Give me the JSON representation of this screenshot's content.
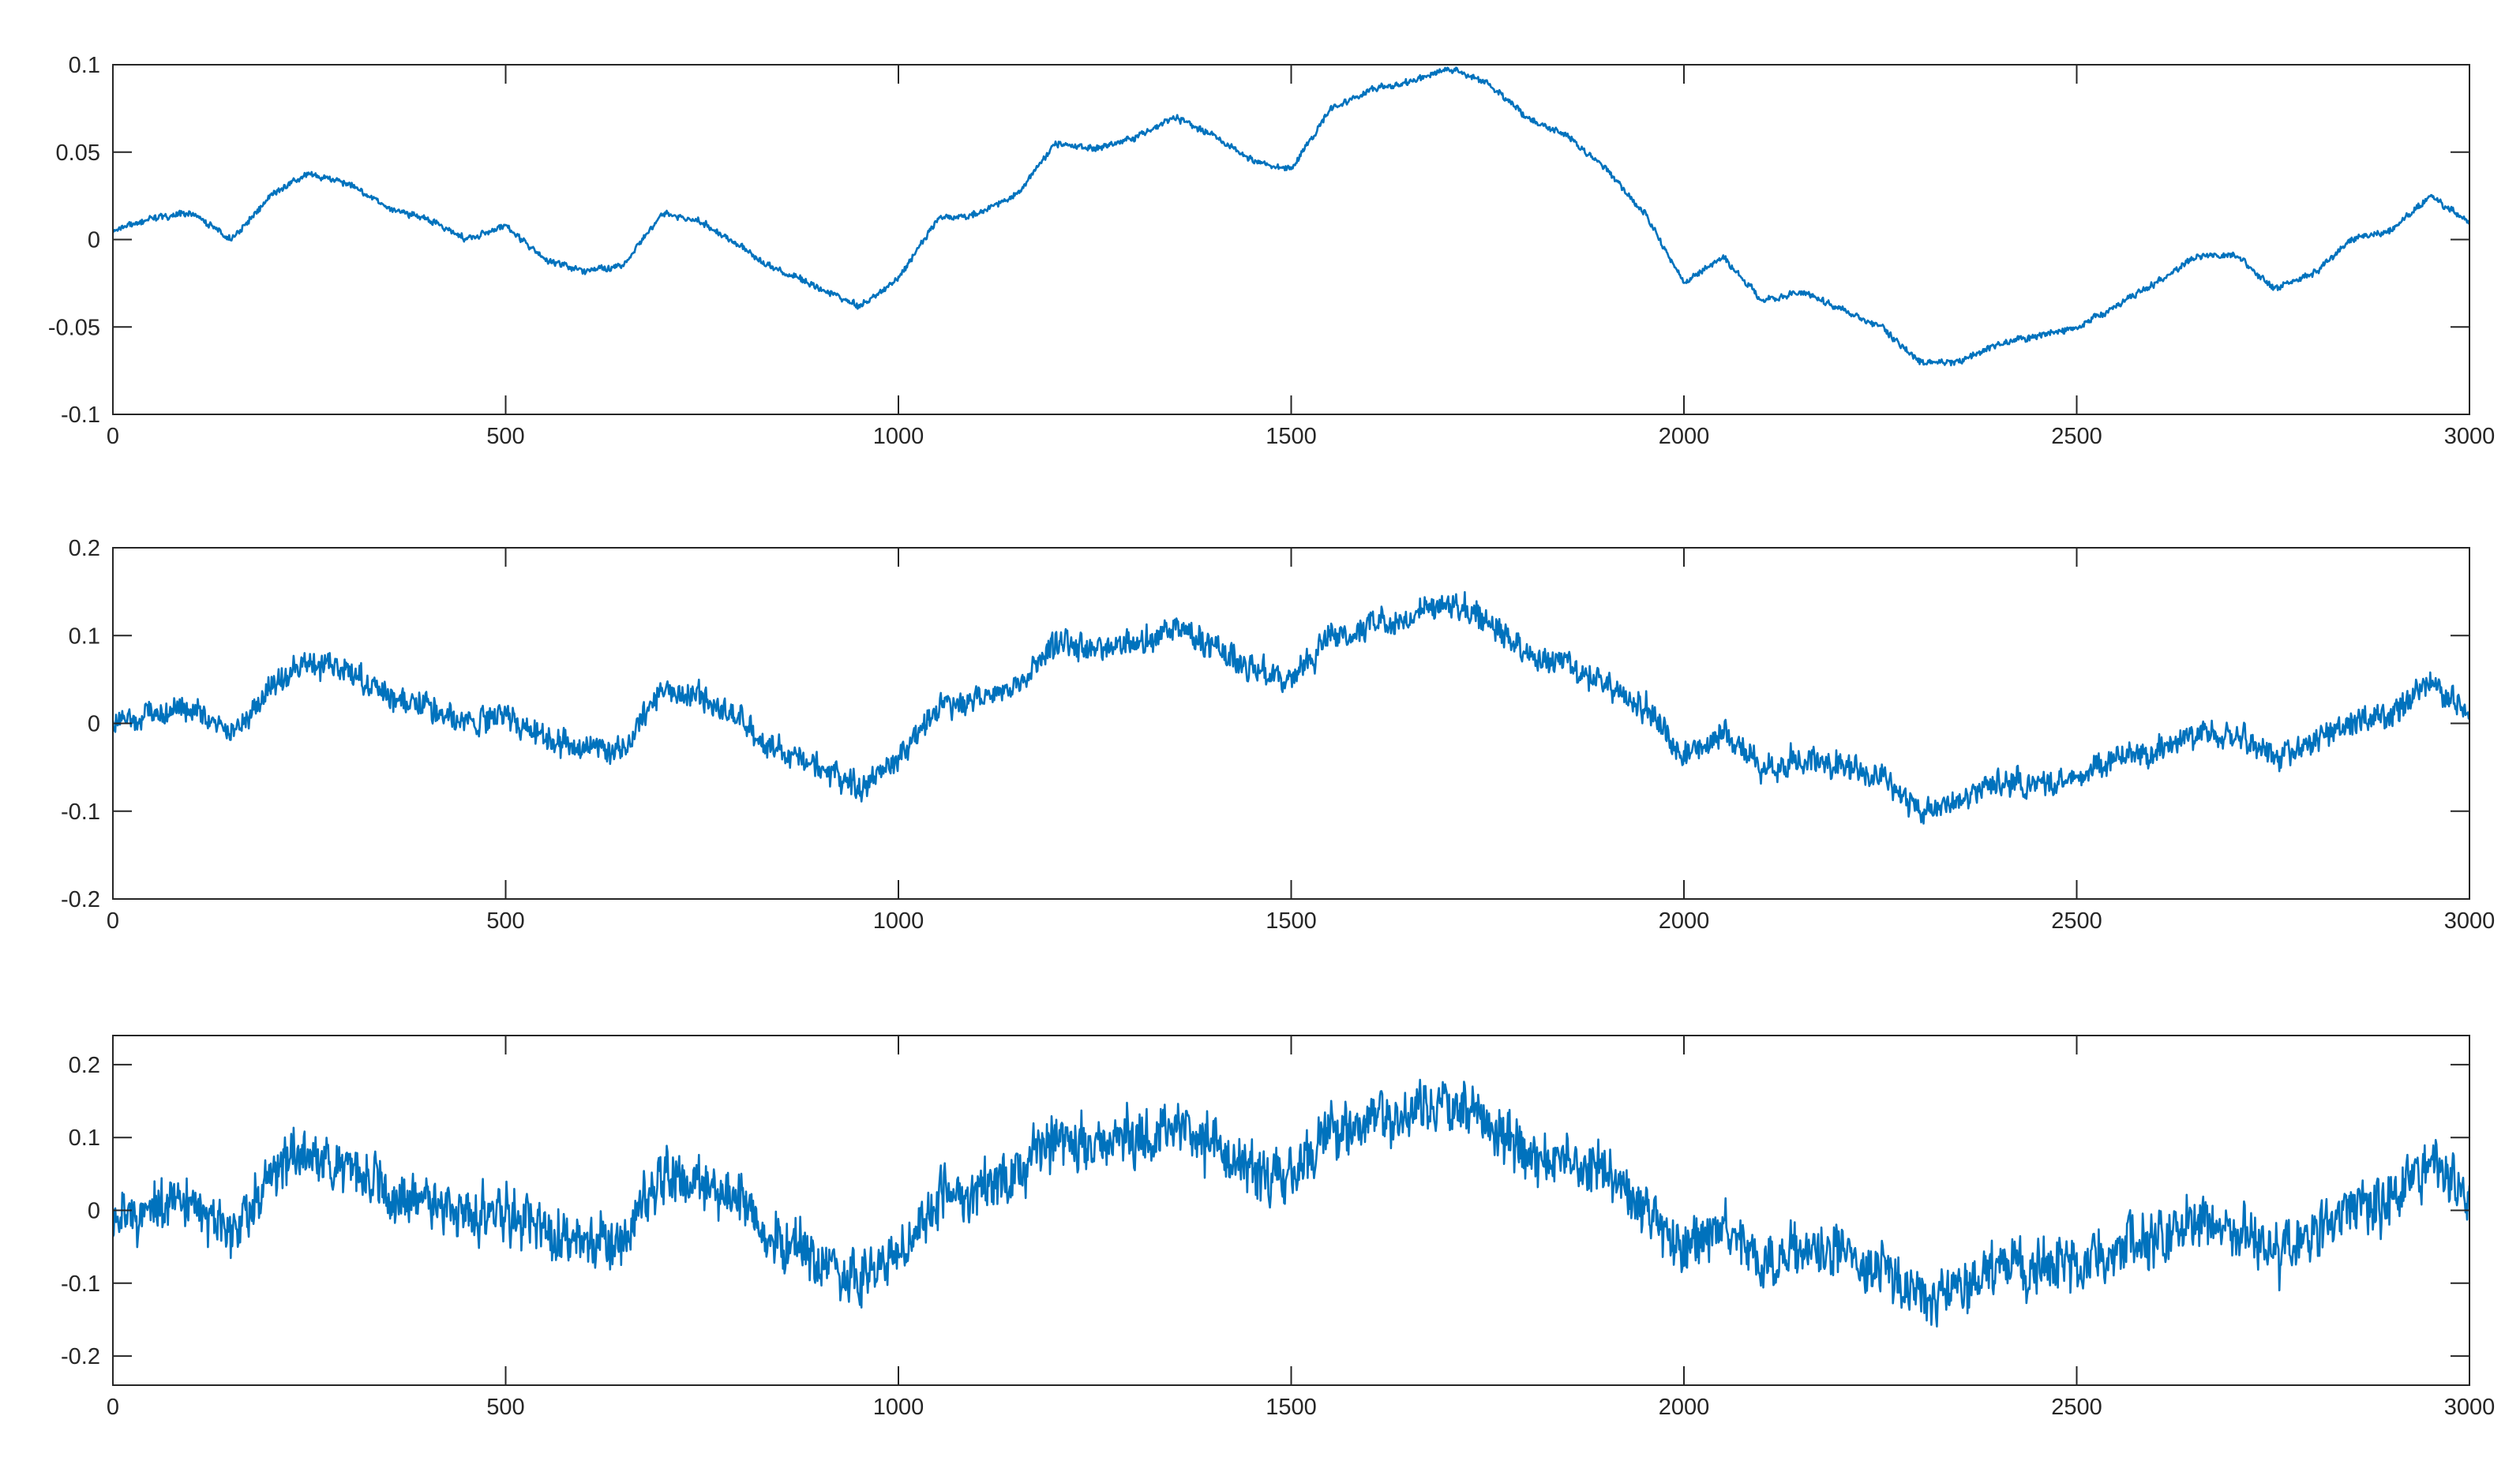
{
  "colors": {
    "line": "#0072BD",
    "axes": "#262626",
    "background": "#ffffff"
  },
  "chart_data": [
    {
      "type": "line",
      "title": "",
      "xlabel": "",
      "ylabel": "",
      "xlim": [
        0,
        3000
      ],
      "ylim": [
        -0.1,
        0.1
      ],
      "xticks": [
        0,
        500,
        1000,
        1500,
        2000,
        2500,
        3000
      ],
      "xtick_labels": [
        "0",
        "500",
        "1000",
        "1500",
        "2000",
        "2500",
        "3000"
      ],
      "yticks": [
        -0.1,
        -0.05,
        0,
        0.05,
        0.1
      ],
      "ytick_labels": [
        "-0.1",
        "-0.05",
        "0",
        "0.05",
        "0.1"
      ],
      "grid": false,
      "series": [
        {
          "noise": 0.003,
          "x": [
            0,
            50,
            100,
            150,
            200,
            250,
            300,
            350,
            400,
            450,
            500,
            550,
            600,
            650,
            700,
            750,
            800,
            850,
            900,
            950,
            1000,
            1050,
            1100,
            1150,
            1200,
            1250,
            1300,
            1350,
            1400,
            1450,
            1500,
            1550,
            1600,
            1650,
            1700,
            1750,
            1800,
            1850,
            1900,
            1950,
            2000,
            2050,
            2100,
            2150,
            2200,
            2250,
            2300,
            2350,
            2400,
            2450,
            2500,
            2550,
            2600,
            2650,
            2700,
            2750,
            2800,
            2850,
            2900,
            2950,
            3000
          ],
          "y": [
            0.005,
            0.012,
            0.015,
            0.0,
            0.025,
            0.038,
            0.032,
            0.018,
            0.012,
            0.0,
            0.008,
            -0.012,
            -0.018,
            -0.015,
            0.015,
            0.01,
            -0.005,
            -0.018,
            -0.028,
            -0.038,
            -0.022,
            0.012,
            0.015,
            0.025,
            0.055,
            0.052,
            0.058,
            0.07,
            0.06,
            0.045,
            0.04,
            0.075,
            0.085,
            0.09,
            0.098,
            0.09,
            0.07,
            0.06,
            0.04,
            0.015,
            -0.025,
            -0.01,
            -0.035,
            -0.03,
            -0.04,
            -0.05,
            -0.07,
            -0.07,
            -0.06,
            -0.055,
            -0.05,
            -0.038,
            -0.025,
            -0.01,
            -0.008,
            -0.028,
            -0.02,
            0.0,
            0.005,
            0.025,
            0.01
          ]
        }
      ]
    },
    {
      "type": "line",
      "title": "",
      "xlabel": "",
      "ylabel": "",
      "xlim": [
        0,
        3000
      ],
      "ylim": [
        -0.2,
        0.2
      ],
      "xticks": [
        0,
        500,
        1000,
        1500,
        2000,
        2500,
        3000
      ],
      "xtick_labels": [
        "0",
        "500",
        "1000",
        "1500",
        "2000",
        "2500",
        "3000"
      ],
      "yticks": [
        -0.2,
        -0.1,
        0,
        0.1,
        0.2
      ],
      "ytick_labels": [
        "-0.2",
        "-0.1",
        "0",
        "0.1",
        "0.2"
      ],
      "grid": false,
      "series": [
        {
          "noise": 0.025,
          "x": [
            0,
            50,
            100,
            150,
            200,
            250,
            300,
            350,
            400,
            450,
            500,
            550,
            600,
            650,
            700,
            750,
            800,
            850,
            900,
            950,
            1000,
            1050,
            1100,
            1150,
            1200,
            1250,
            1300,
            1350,
            1400,
            1450,
            1500,
            1550,
            1600,
            1650,
            1700,
            1750,
            1800,
            1850,
            1900,
            1950,
            2000,
            2050,
            2100,
            2150,
            2200,
            2250,
            2300,
            2350,
            2400,
            2450,
            2500,
            2550,
            2600,
            2650,
            2700,
            2750,
            2800,
            2850,
            2900,
            2950,
            3000
          ],
          "y": [
            0.0,
            0.01,
            0.015,
            -0.01,
            0.04,
            0.07,
            0.06,
            0.03,
            0.02,
            0.0,
            0.01,
            -0.02,
            -0.03,
            -0.03,
            0.04,
            0.03,
            0.0,
            -0.03,
            -0.05,
            -0.07,
            -0.04,
            0.02,
            0.03,
            0.04,
            0.09,
            0.085,
            0.09,
            0.11,
            0.09,
            0.06,
            0.05,
            0.1,
            0.11,
            0.12,
            0.14,
            0.12,
            0.08,
            0.07,
            0.04,
            0.02,
            -0.04,
            -0.01,
            -0.05,
            -0.04,
            -0.05,
            -0.06,
            -0.1,
            -0.09,
            -0.07,
            -0.07,
            -0.06,
            -0.04,
            -0.03,
            -0.01,
            -0.01,
            -0.04,
            -0.02,
            0.0,
            0.01,
            0.05,
            0.01
          ]
        }
      ]
    },
    {
      "type": "line",
      "title": "",
      "xlabel": "",
      "ylabel": "",
      "xlim": [
        0,
        3000
      ],
      "ylim": [
        -0.24,
        0.24
      ],
      "xticks": [
        0,
        500,
        1000,
        1500,
        2000,
        2500,
        3000
      ],
      "xtick_labels": [
        "0",
        "500",
        "1000",
        "1500",
        "2000",
        "2500",
        "3000"
      ],
      "yticks": [
        -0.2,
        -0.1,
        0,
        0.1,
        0.2
      ],
      "ytick_labels": [
        "-0.2",
        "-0.1",
        "0",
        "0.1",
        "0.2"
      ],
      "grid": false,
      "series": [
        {
          "noise": 0.06,
          "x": [
            0,
            50,
            100,
            150,
            200,
            250,
            300,
            350,
            400,
            450,
            500,
            550,
            600,
            650,
            700,
            750,
            800,
            850,
            900,
            950,
            1000,
            1050,
            1100,
            1150,
            1200,
            1250,
            1300,
            1350,
            1400,
            1450,
            1500,
            1550,
            1600,
            1650,
            1700,
            1750,
            1800,
            1850,
            1900,
            1950,
            2000,
            2050,
            2100,
            2150,
            2200,
            2250,
            2300,
            2350,
            2400,
            2450,
            2500,
            2550,
            2600,
            2650,
            2700,
            2750,
            2800,
            2850,
            2900,
            2950,
            3000
          ],
          "y": [
            -0.01,
            0.0,
            0.01,
            -0.03,
            0.05,
            0.08,
            0.06,
            0.02,
            0.01,
            -0.01,
            0.0,
            -0.04,
            -0.05,
            -0.04,
            0.05,
            0.04,
            0.0,
            -0.04,
            -0.07,
            -0.09,
            -0.06,
            0.02,
            0.03,
            0.05,
            0.1,
            0.09,
            0.1,
            0.12,
            0.09,
            0.05,
            0.04,
            0.11,
            0.12,
            0.13,
            0.15,
            0.13,
            0.08,
            0.07,
            0.04,
            0.01,
            -0.06,
            -0.02,
            -0.07,
            -0.05,
            -0.06,
            -0.08,
            -0.12,
            -0.11,
            -0.08,
            -0.08,
            -0.07,
            -0.05,
            -0.04,
            -0.01,
            -0.02,
            -0.06,
            -0.03,
            0.0,
            0.01,
            0.07,
            0.02
          ]
        }
      ]
    }
  ]
}
